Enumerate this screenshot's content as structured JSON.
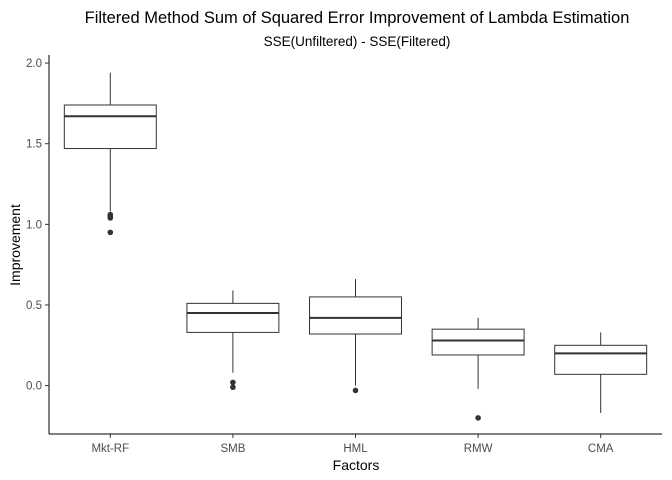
{
  "chart_data": {
    "type": "boxplot",
    "title": "Filtered Method Sum of Squared Error Improvement of Lambda Estimation",
    "subtitle": "SSE(Unfiltered) - SSE(Filtered)",
    "xlabel": "Factors",
    "ylabel": "Improvement",
    "ylim": [
      -0.3,
      2.05
    ],
    "yticks": [
      0.0,
      0.5,
      1.0,
      1.5,
      2.0
    ],
    "ytick_labels": [
      "0.0",
      "0.5",
      "1.0",
      "1.5",
      "2.0"
    ],
    "grid": false,
    "categories": [
      "Mkt-RF",
      "SMB",
      "HML",
      "RMW",
      "CMA"
    ],
    "boxes": [
      {
        "category": "Mkt-RF",
        "whisker_low": 1.08,
        "q1": 1.47,
        "median": 1.67,
        "q3": 1.74,
        "whisker_high": 1.94,
        "outliers": [
          1.06,
          1.05,
          1.04,
          0.95
        ]
      },
      {
        "category": "SMB",
        "whisker_low": 0.08,
        "q1": 0.33,
        "median": 0.45,
        "q3": 0.51,
        "whisker_high": 0.59,
        "outliers": [
          0.02,
          -0.01
        ]
      },
      {
        "category": "HML",
        "whisker_low": 0.0,
        "q1": 0.32,
        "median": 0.42,
        "q3": 0.55,
        "whisker_high": 0.66,
        "outliers": [
          -0.03
        ]
      },
      {
        "category": "RMW",
        "whisker_low": -0.02,
        "q1": 0.19,
        "median": 0.28,
        "q3": 0.35,
        "whisker_high": 0.42,
        "outliers": [
          -0.2
        ]
      },
      {
        "category": "CMA",
        "whisker_low": -0.17,
        "q1": 0.07,
        "median": 0.2,
        "q3": 0.25,
        "whisker_high": 0.33,
        "outliers": []
      }
    ]
  }
}
